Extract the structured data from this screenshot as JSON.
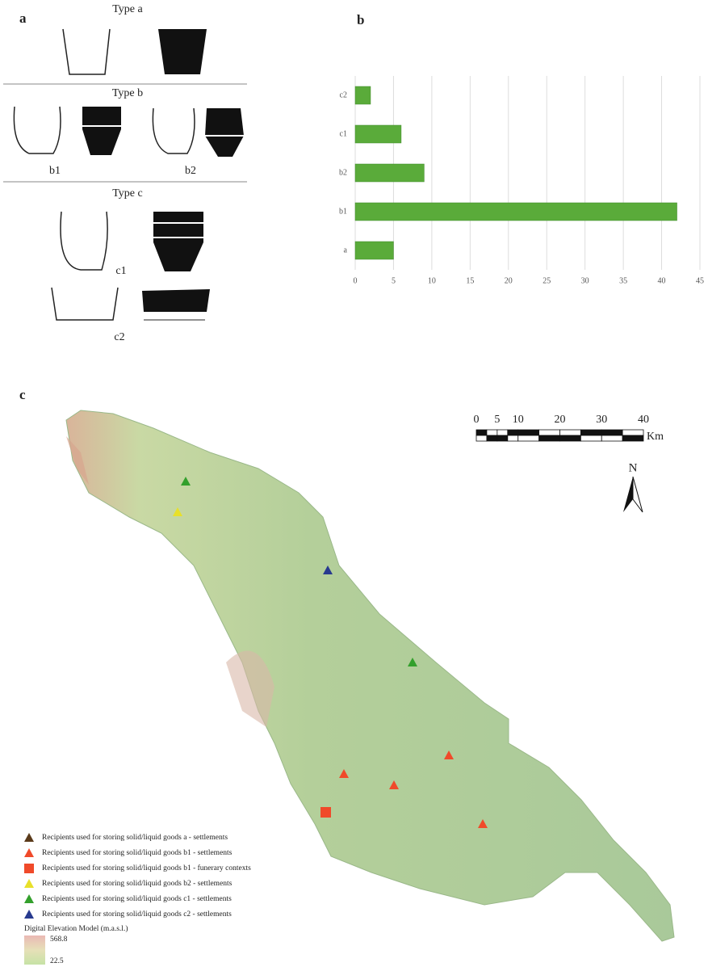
{
  "panel_a": {
    "label": "a",
    "type_a": "Type a",
    "type_b": "Type b",
    "b1": "b1",
    "b2": "b2",
    "type_c": "Type c",
    "c1": "c1",
    "c2": "c2"
  },
  "chart_data": {
    "type": "bar",
    "label": "b",
    "orientation": "horizontal",
    "categories": [
      "c2",
      "c1",
      "b2",
      "b1",
      "a"
    ],
    "values": [
      2,
      6,
      9,
      42,
      5
    ],
    "color": "#5aab3a",
    "xlim": [
      0,
      45
    ],
    "xticks": [
      0,
      5,
      10,
      15,
      20,
      25,
      30,
      35,
      40,
      45
    ],
    "grid": true
  },
  "panel_c": {
    "label": "c",
    "scale": {
      "ticks": [
        0,
        5,
        10,
        20,
        30,
        40
      ],
      "unit": "Km"
    },
    "north": "N",
    "legend": [
      "Recipients used for storing solid/liquid goods a - settlements",
      "Recipients used for storing solid/liquid goods b1 - settlements",
      "Recipients used for storing solid/liquid goods b1 - funerary contexts",
      "Recipients used for storing solid/liquid goods b2 - settlements",
      "Recipients used for storing solid/liquid goods c1 - settlements",
      "Recipients used for storing solid/liquid goods c2 - settlements"
    ],
    "dem": {
      "title": "Digital Elevation Model  (m.a.s.l.)",
      "max": 568.8,
      "min": 22.5
    }
  }
}
